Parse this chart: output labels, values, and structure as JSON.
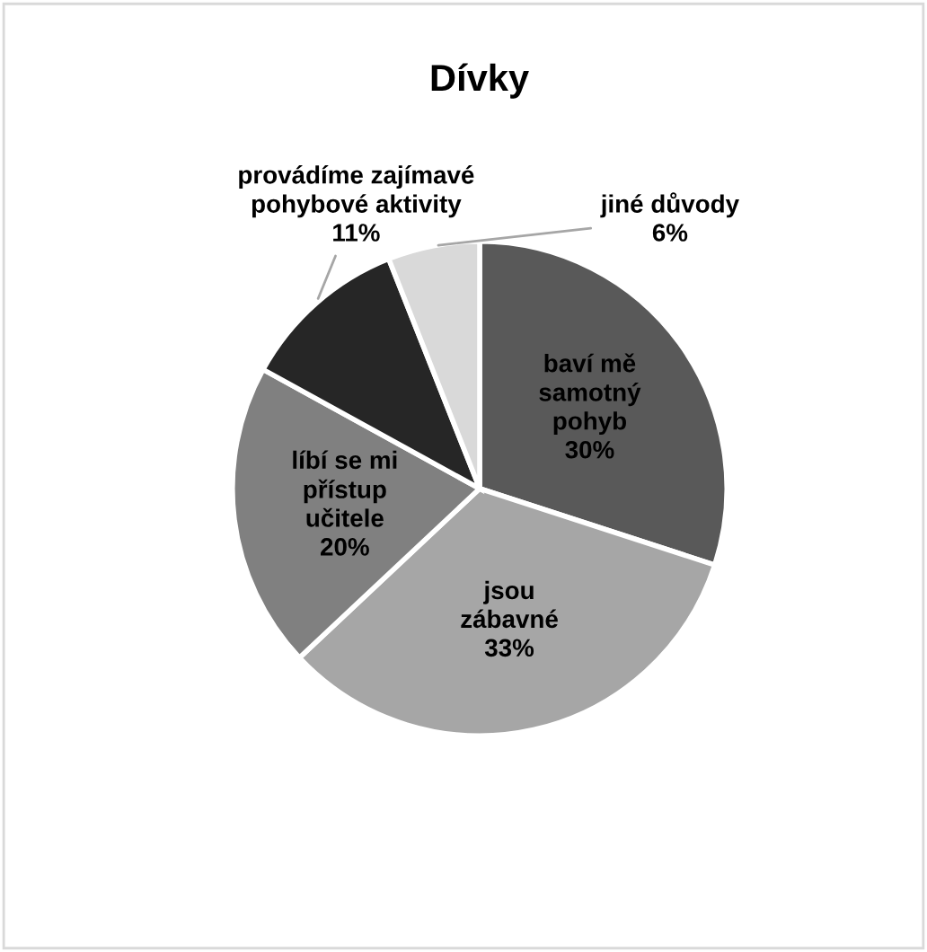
{
  "chart_data": {
    "type": "pie",
    "title": "Dívky",
    "categories": [
      "baví mě samotný pohyb",
      "jsou zábavné",
      "líbí se mi přístup učitele",
      "provádíme zajímavé pohybové aktivity",
      "jiné důvody"
    ],
    "values": [
      30,
      33,
      20,
      11,
      6
    ],
    "colors": [
      "#595959",
      "#a6a6a6",
      "#808080",
      "#262626",
      "#d9d9d9"
    ],
    "value_labels": [
      "30%",
      "33%",
      "20%",
      "11%",
      "6%"
    ],
    "legend": false
  }
}
